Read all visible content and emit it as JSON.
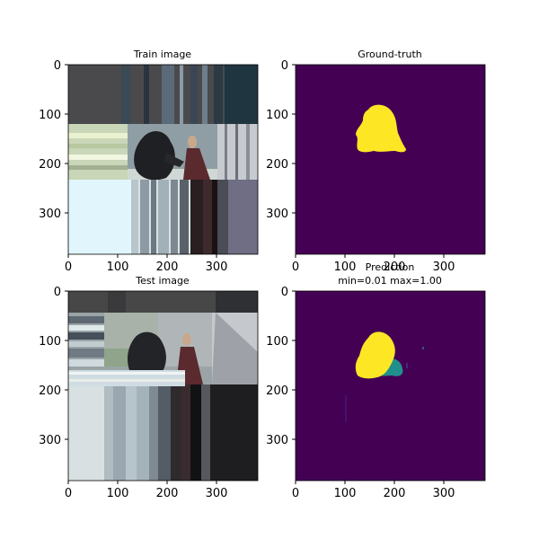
{
  "figure": {
    "panels": [
      {
        "id": "train-image",
        "title_lines": [
          "Train image"
        ],
        "kind": "photo",
        "xticks": [
          "0",
          "100",
          "200",
          "300"
        ],
        "yticks": [
          "0",
          "100",
          "200",
          "300"
        ]
      },
      {
        "id": "ground-truth",
        "title_lines": [
          "Ground-truth"
        ],
        "kind": "mask",
        "xticks": [
          "0",
          "100",
          "200",
          "300"
        ],
        "yticks": [
          "0",
          "100",
          "200",
          "300"
        ]
      },
      {
        "id": "test-image",
        "title_lines": [
          "Test image"
        ],
        "kind": "photo",
        "xticks": [
          "0",
          "100",
          "200",
          "300"
        ],
        "yticks": [
          "0",
          "100",
          "200",
          "300"
        ]
      },
      {
        "id": "prediction",
        "title_lines": [
          "Prediction",
          "min=0.01 max=1.00"
        ],
        "kind": "mask",
        "xticks": [
          "0",
          "100",
          "200",
          "300"
        ],
        "yticks": [
          "0",
          "100",
          "200",
          "300"
        ]
      }
    ]
  },
  "chart_data": {
    "type": "heatmap",
    "image_extent": [
      0,
      384
    ],
    "tick_values": [
      0,
      100,
      200,
      300
    ],
    "colormap": {
      "low": "#440154",
      "mid": "#21908d",
      "high": "#fde725"
    },
    "prediction_range": {
      "min": 0.01,
      "max": 1.0
    }
  }
}
